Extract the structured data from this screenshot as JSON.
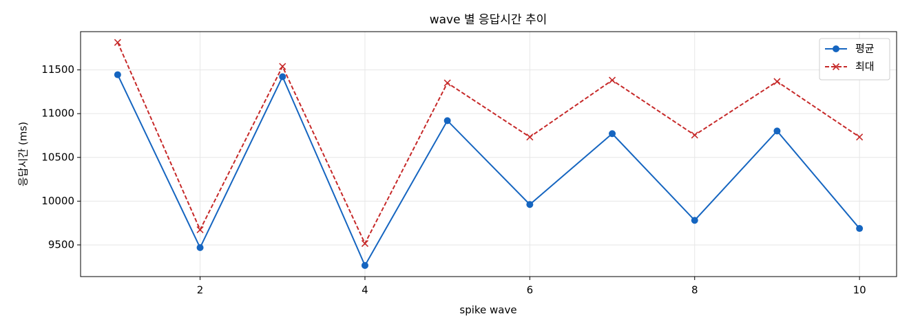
{
  "chart_data": {
    "type": "line",
    "title": "wave 별 응답시간 추이",
    "xlabel": "spike wave",
    "ylabel": "응답시간 (ms)",
    "x": [
      1,
      2,
      3,
      4,
      5,
      6,
      7,
      8,
      9,
      10
    ],
    "series": [
      {
        "name": "평균",
        "color": "#1565c0",
        "linestyle": "solid",
        "marker": "circle",
        "values": [
          11445,
          9469,
          11422,
          9265,
          10920,
          9962,
          10771,
          9781,
          10802,
          9688
        ]
      },
      {
        "name": "최대",
        "color": "#c62828",
        "linestyle": "dashed",
        "marker": "x",
        "values": [
          11814,
          9673,
          11539,
          9516,
          11351,
          10733,
          11382,
          10755,
          11367,
          10733
        ]
      }
    ],
    "xlim": [
      0.55,
      10.45
    ],
    "xticks": [
      2,
      4,
      6,
      8,
      10
    ],
    "ylim": [
      9138,
      11937
    ],
    "yticks": [
      9500,
      10000,
      10500,
      11000,
      11500
    ],
    "grid": true,
    "legend": "upper right"
  }
}
